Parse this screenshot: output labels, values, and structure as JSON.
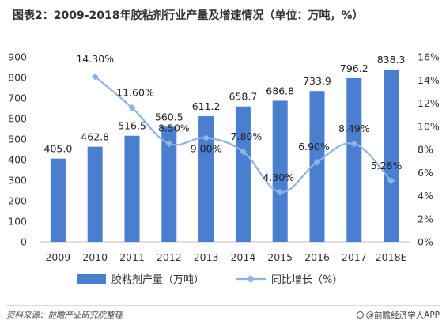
{
  "title": "图表2：2009-2018年胶粘剂行业产量及增速情况（单位：万吨，%）",
  "source": "资料来源：前瞻产业研究院整理",
  "brand": "@前瞻经济学人APP",
  "colors": {
    "bar": "#4a7fd0",
    "line": "#8eb4e3"
  },
  "chart_data": {
    "type": "bar",
    "categories": [
      "2009",
      "2010",
      "2011",
      "2012",
      "2013",
      "2014",
      "2015",
      "2016",
      "2017",
      "2018E"
    ],
    "series": [
      {
        "name": "胶粘剂产量（万吨）",
        "type": "bar",
        "axis": "left",
        "values": [
          405.0,
          462.8,
          516.5,
          560.5,
          611.2,
          658.7,
          686.8,
          733.9,
          796.2,
          838.3
        ],
        "labels": [
          "405.0",
          "462.8",
          "516.5",
          "560.5",
          "611.2",
          "658.7",
          "686.8",
          "733.9",
          "796.2",
          "838.3"
        ]
      },
      {
        "name": "同比增长（%）",
        "type": "line",
        "axis": "right",
        "values": [
          null,
          14.3,
          11.6,
          8.5,
          9.0,
          7.8,
          4.3,
          6.9,
          8.49,
          5.28
        ],
        "labels": [
          null,
          "14.30%",
          "11.60%",
          "8.50%",
          "9.00%",
          "7.80%",
          "4.30%",
          "6.90%",
          "8.49%",
          "5.28%"
        ]
      }
    ],
    "y_left": {
      "min": 0,
      "max": 900,
      "step": 100,
      "ticks": [
        "0",
        "100",
        "200",
        "300",
        "400",
        "500",
        "600",
        "700",
        "800",
        "900"
      ]
    },
    "y_right": {
      "min": 0,
      "max": 16,
      "step": 2,
      "ticks": [
        "0%",
        "2%",
        "4%",
        "6%",
        "8%",
        "10%",
        "12%",
        "14%",
        "16%"
      ]
    },
    "legend_position": "bottom",
    "grid": false
  }
}
